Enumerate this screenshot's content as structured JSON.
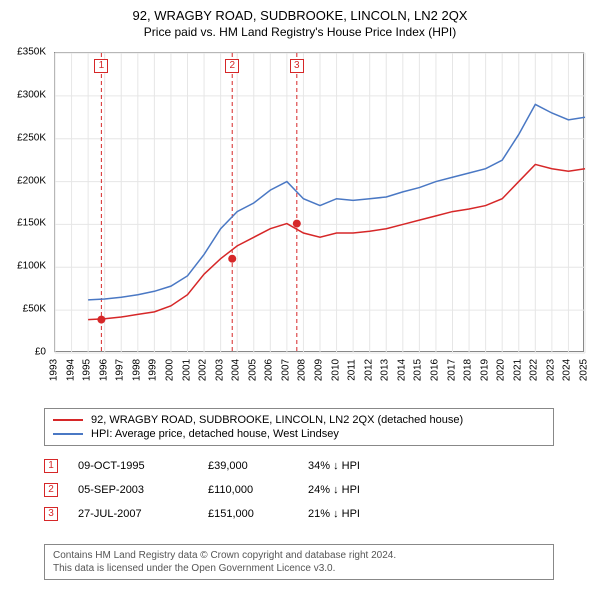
{
  "title": {
    "main": "92, WRAGBY ROAD, SUDBROOKE, LINCOLN, LN2 2QX",
    "sub": "Price paid vs. HM Land Registry's House Price Index (HPI)"
  },
  "chart": {
    "type": "line",
    "background_color": "#ffffff",
    "grid_color": "#e6e6e6",
    "axis_color": "#888888",
    "ylim": [
      0,
      350000
    ],
    "ytick_step": 50000,
    "yticks": [
      "£0",
      "£50K",
      "£100K",
      "£150K",
      "£200K",
      "£250K",
      "£300K",
      "£350K"
    ],
    "xlim": [
      1993,
      2025
    ],
    "xticks": [
      "1993",
      "1994",
      "1995",
      "1996",
      "1997",
      "1998",
      "1999",
      "2000",
      "2001",
      "2002",
      "2003",
      "2004",
      "2005",
      "2006",
      "2007",
      "2008",
      "2009",
      "2010",
      "2011",
      "2012",
      "2013",
      "2014",
      "2015",
      "2016",
      "2017",
      "2018",
      "2019",
      "2020",
      "2021",
      "2022",
      "2023",
      "2024",
      "2025"
    ],
    "tick_fontsize": 10,
    "line_width": 1.5,
    "marker_line_dash": "4 3",
    "series": [
      {
        "label": "92, WRAGBY ROAD, SUDBROOKE, LINCOLN, LN2 2QX (detached house)",
        "color": "#d62728",
        "x": [
          1995,
          1996,
          1997,
          1998,
          1999,
          2000,
          2001,
          2002,
          2003,
          2004,
          2005,
          2006,
          2007,
          2008,
          2009,
          2010,
          2011,
          2012,
          2013,
          2014,
          2015,
          2016,
          2017,
          2018,
          2019,
          2020,
          2021,
          2022,
          2023,
          2024,
          2025
        ],
        "y": [
          39000,
          40000,
          42000,
          45000,
          48000,
          55000,
          68000,
          92000,
          110000,
          125000,
          135000,
          145000,
          151000,
          140000,
          135000,
          140000,
          140000,
          142000,
          145000,
          150000,
          155000,
          160000,
          165000,
          168000,
          172000,
          180000,
          200000,
          220000,
          215000,
          212000,
          215000
        ]
      },
      {
        "label": "HPI: Average price, detached house, West Lindsey",
        "color": "#4a78c4",
        "x": [
          1995,
          1996,
          1997,
          1998,
          1999,
          2000,
          2001,
          2002,
          2003,
          2004,
          2005,
          2006,
          2007,
          2008,
          2009,
          2010,
          2011,
          2012,
          2013,
          2014,
          2015,
          2016,
          2017,
          2018,
          2019,
          2020,
          2021,
          2022,
          2023,
          2024,
          2025
        ],
        "y": [
          62000,
          63000,
          65000,
          68000,
          72000,
          78000,
          90000,
          115000,
          145000,
          165000,
          175000,
          190000,
          200000,
          180000,
          172000,
          180000,
          178000,
          180000,
          182000,
          188000,
          193000,
          200000,
          205000,
          210000,
          215000,
          225000,
          255000,
          290000,
          280000,
          272000,
          275000
        ]
      }
    ],
    "event_markers": [
      {
        "n": "1",
        "x": 1995.8,
        "color": "#d62728"
      },
      {
        "n": "2",
        "x": 2003.7,
        "color": "#d62728"
      },
      {
        "n": "3",
        "x": 2007.6,
        "color": "#d62728"
      }
    ]
  },
  "legend": {
    "border_color": "#888888",
    "items": [
      {
        "color": "#d62728",
        "label": "92, WRAGBY ROAD, SUDBROOKE, LINCOLN, LN2 2QX (detached house)"
      },
      {
        "color": "#4a78c4",
        "label": "HPI: Average price, detached house, West Lindsey"
      }
    ]
  },
  "events": [
    {
      "n": "1",
      "color": "#d62728",
      "date": "09-OCT-1995",
      "price": "£39,000",
      "delta": "34% ↓ HPI"
    },
    {
      "n": "2",
      "color": "#d62728",
      "date": "05-SEP-2003",
      "price": "£110,000",
      "delta": "24% ↓ HPI"
    },
    {
      "n": "3",
      "color": "#d62728",
      "date": "27-JUL-2007",
      "price": "£151,000",
      "delta": "21% ↓ HPI"
    }
  ],
  "footer": {
    "line1": "Contains HM Land Registry data © Crown copyright and database right 2024.",
    "line2": "This data is licensed under the Open Government Licence v3.0."
  }
}
